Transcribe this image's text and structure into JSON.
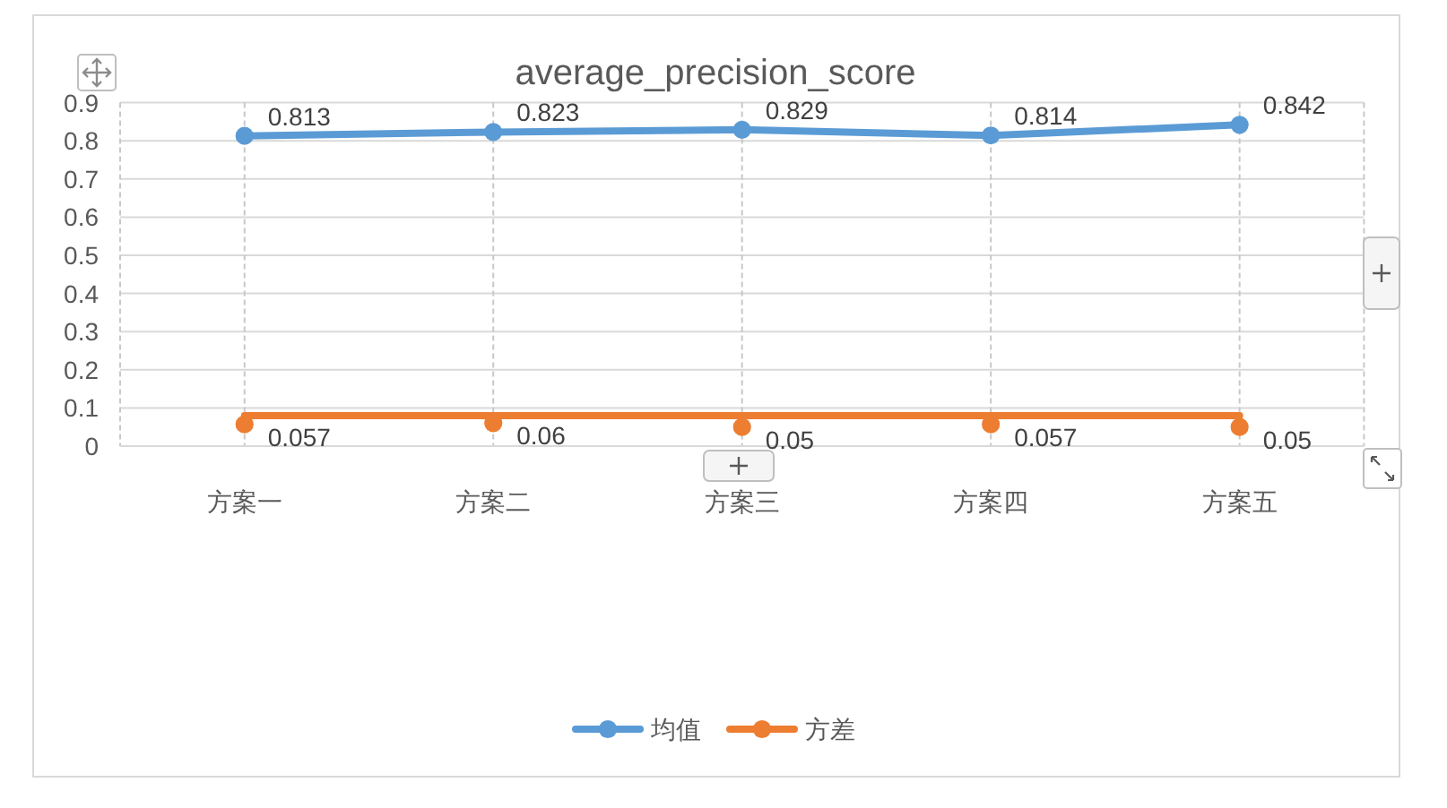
{
  "chart_data": {
    "type": "line",
    "title": "average_precision_score",
    "categories": [
      "方案一",
      "方案二",
      "方案三",
      "方案四",
      "方案五"
    ],
    "series": [
      {
        "name": "均值",
        "color": "#5b9bd5",
        "values": [
          0.813,
          0.823,
          0.829,
          0.814,
          0.842
        ],
        "value_labels": [
          "0.813",
          "0.823",
          "0.829",
          "0.814",
          "0.842"
        ]
      },
      {
        "name": "方差",
        "type": "scatter",
        "color": "#ed7d31",
        "values": [
          0.057,
          0.06,
          0.05,
          0.057,
          0.05
        ],
        "value_labels": [
          "0.057",
          "0.06",
          "0.05",
          "0.057",
          "0.05"
        ]
      },
      {
        "color": "#ed7d31",
        "values": [
          0.08,
          0.08,
          0.08,
          0.08,
          0.08
        ],
        "marker": "none"
      }
    ],
    "ylim": [
      0,
      0.9
    ],
    "yticks": [
      0,
      0.1,
      0.2,
      0.3,
      0.4,
      0.5,
      0.6,
      0.7,
      0.8,
      0.9
    ],
    "grid": true,
    "legend": "bottom",
    "marker": "circle"
  }
}
